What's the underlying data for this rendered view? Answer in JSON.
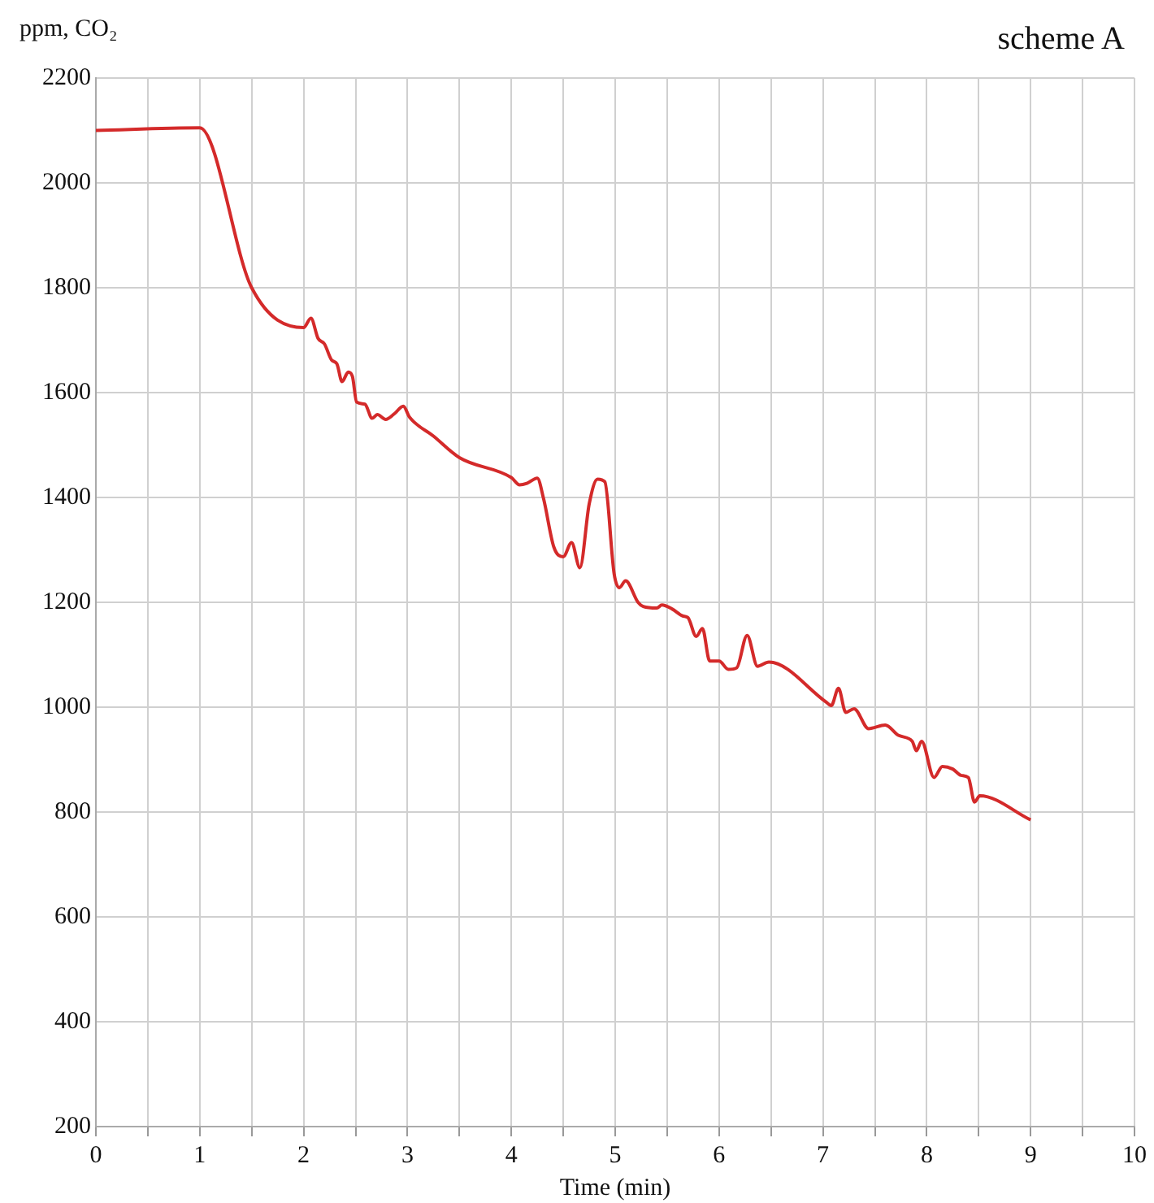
{
  "chart_data": {
    "type": "line",
    "title": "scheme A",
    "ylabel": "ppm, CO₂",
    "xlabel": "Time (min)",
    "xlim": [
      0,
      10
    ],
    "xticks": [
      0,
      {
        "value": 0.5,
        "label": null
      },
      1,
      {
        "value": 1.5,
        "label": null
      },
      2,
      {
        "value": 2.5,
        "label": null
      },
      3,
      {
        "value": 3.5,
        "label": null
      },
      4,
      {
        "value": 4.5,
        "label": null
      },
      5,
      {
        "value": 5.5,
        "label": null
      },
      6,
      {
        "value": 6.5,
        "label": null
      },
      7,
      {
        "value": 7.5,
        "label": null
      },
      8,
      {
        "value": 8.5,
        "label": null
      },
      9,
      {
        "value": 9.5,
        "label": null
      },
      10
    ],
    "ylim": [
      200,
      2200
    ],
    "yticks": [
      200,
      400,
      600,
      800,
      1000,
      1200,
      1400,
      1600,
      1800,
      2000,
      2200
    ],
    "grid": true,
    "legend": false,
    "marker": "none",
    "line_style": "solid",
    "series": [
      {
        "color": "#d42a2a",
        "x": [
          0,
          1,
          1.5,
          2,
          2.07,
          2.14,
          2.2,
          2.27,
          2.32,
          2.37,
          2.43,
          2.47,
          2.51,
          2.59,
          2.66,
          2.71,
          2.79,
          2.87,
          2.96,
          3.02,
          3.25,
          3.5,
          4,
          4.08,
          4.15,
          4.25,
          4.31,
          4.41,
          4.5,
          4.58,
          4.66,
          4.75,
          4.83,
          4.9,
          4.99,
          5.04,
          5.1,
          5.22,
          5.27,
          5.4,
          5.45,
          5.55,
          5.65,
          5.7,
          5.78,
          5.84,
          5.91,
          6,
          6.09,
          6.17,
          6.27,
          6.37,
          6.48,
          7.03,
          7.08,
          7.15,
          7.22,
          7.3,
          7.44,
          7.6,
          7.73,
          7.86,
          7.9,
          7.95,
          8.07,
          8.15,
          8.25,
          8.33,
          8.4,
          8.46,
          8.51,
          9
        ],
        "values": [
          2100,
          2105,
          1800,
          1724,
          1742,
          1703,
          1693,
          1662,
          1655,
          1621,
          1639,
          1631,
          1582,
          1578,
          1551,
          1558,
          1549,
          1559,
          1574,
          1553,
          1517,
          1476,
          1438,
          1424,
          1427,
          1437,
          1398,
          1305,
          1287,
          1314,
          1266,
          1388,
          1435,
          1430,
          1254,
          1228,
          1241,
          1200,
          1192,
          1189,
          1195,
          1187,
          1174,
          1171,
          1135,
          1150,
          1088,
          1088,
          1072,
          1075,
          1137,
          1078,
          1086,
          1010,
          1003,
          1036,
          990,
          997,
          959,
          966,
          946,
          935,
          917,
          935,
          866,
          887,
          882,
          870,
          866,
          819,
          831,
          785
        ]
      }
    ]
  }
}
